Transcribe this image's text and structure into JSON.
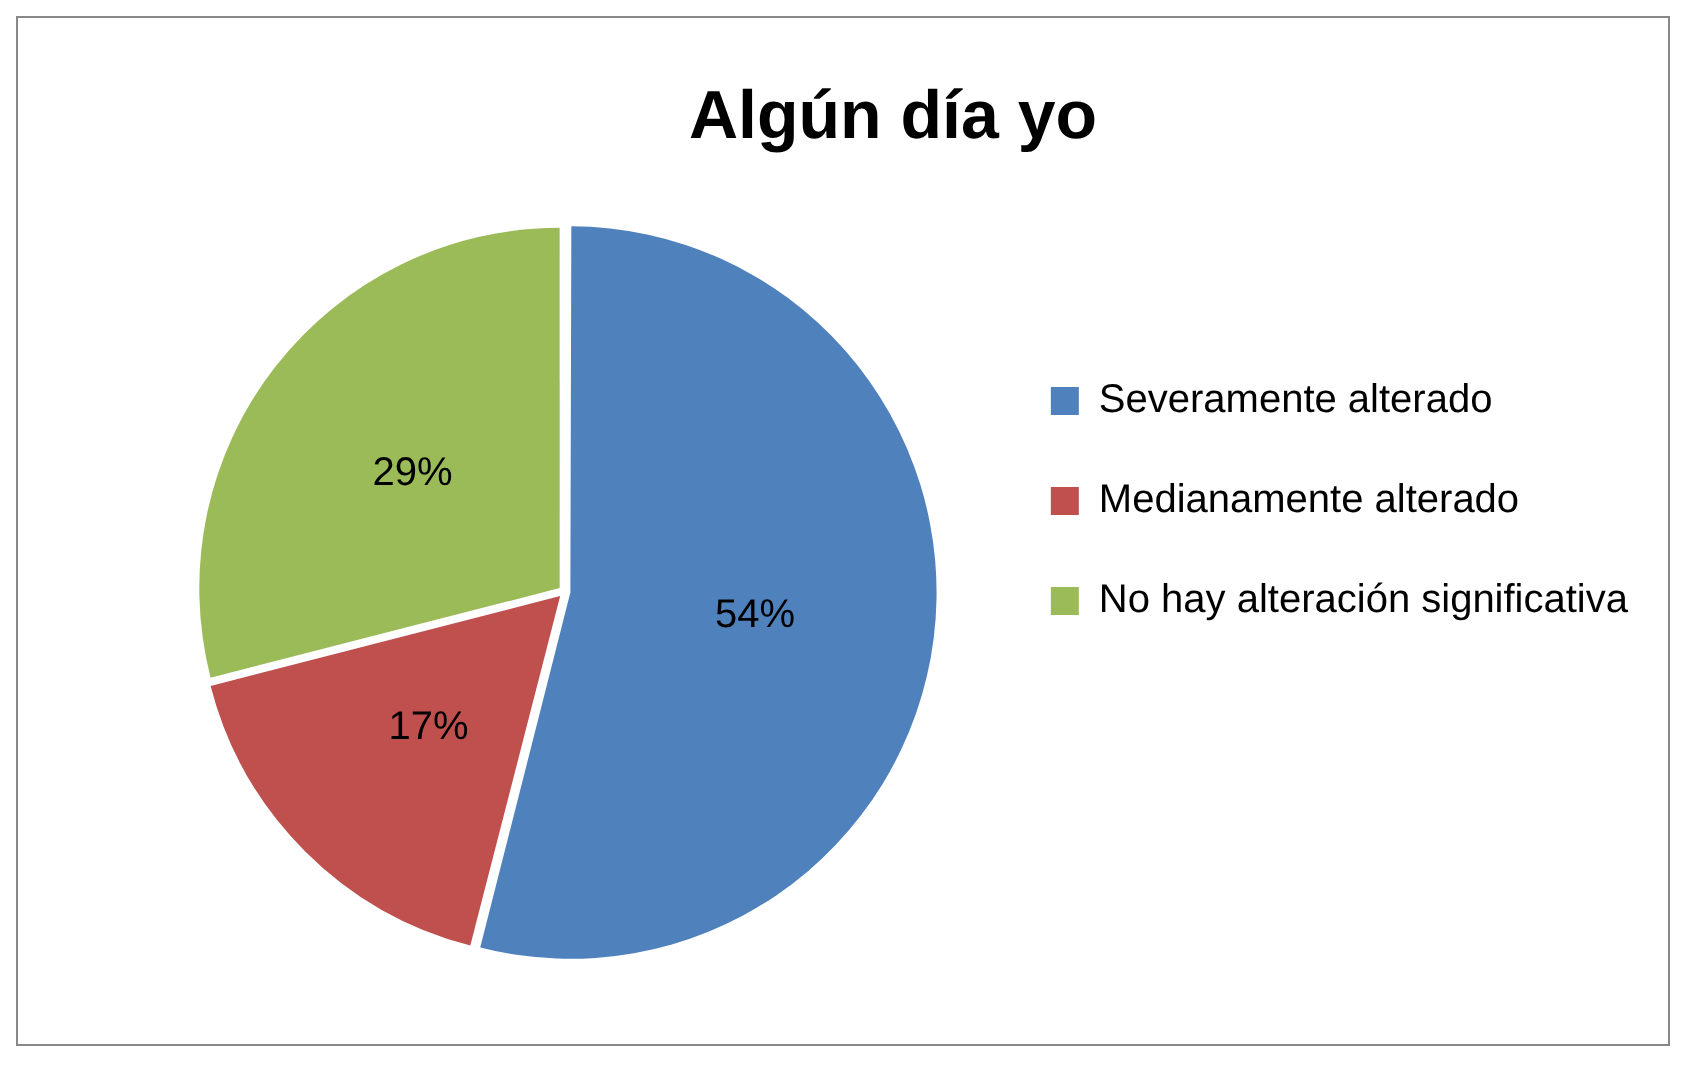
{
  "chart_data": {
    "type": "pie",
    "title": "Algún día yo",
    "categories": [
      "Severamente alterado",
      "Medianamente alterado",
      "No hay alteración significativa"
    ],
    "values": [
      54,
      17,
      29
    ],
    "colors": [
      "#4f81bd",
      "#c0504d",
      "#9bbb59"
    ],
    "value_labels": [
      "54%",
      "17%",
      "29%"
    ],
    "legend": "right"
  }
}
